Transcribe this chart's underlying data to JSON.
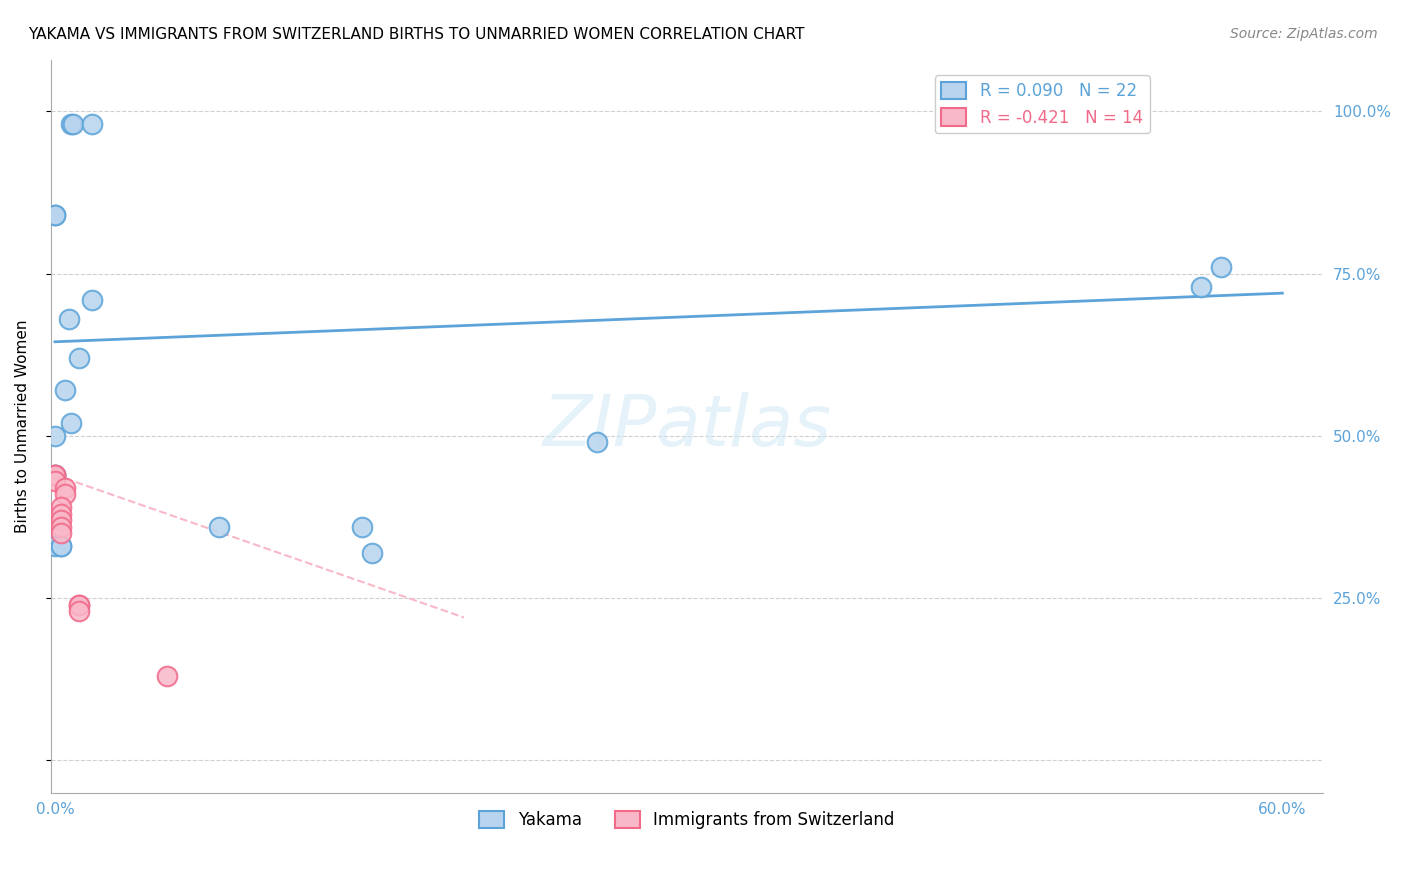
{
  "title": "YAKAMA VS IMMIGRANTS FROM SWITZERLAND BIRTHS TO UNMARRIED WOMEN CORRELATION CHART",
  "source": "Source: ZipAtlas.com",
  "ylabel": "Births to Unmarried Women",
  "xlim": [
    -0.002,
    0.62
  ],
  "ylim": [
    -0.05,
    1.08
  ],
  "x_ticks": [
    0.0,
    0.1,
    0.2,
    0.3,
    0.4,
    0.5,
    0.6
  ],
  "x_tick_labels": [
    "0.0%",
    "",
    "",
    "",
    "",
    "",
    "60.0%"
  ],
  "y_ticks": [
    0.0,
    0.25,
    0.5,
    0.75,
    1.0
  ],
  "y_tick_labels": [
    "",
    "25.0%",
    "50.0%",
    "75.0%",
    "100.0%"
  ],
  "legend_labels_top": [
    "R = 0.090   N = 22",
    "R = -0.421   N = 14"
  ],
  "legend_labels_bottom": [
    "Yakama",
    "Immigrants from Switzerland"
  ],
  "blue_scatter_x": [
    0.008,
    0.009,
    0.018,
    0.0,
    0.0,
    0.018,
    0.007,
    0.012,
    0.005,
    0.008,
    0.0,
    0.0,
    0.0,
    0.265,
    0.57,
    0.56,
    0.08,
    0.15,
    0.155,
    0.0,
    0.003,
    0.003
  ],
  "blue_scatter_y": [
    0.98,
    0.98,
    0.98,
    0.84,
    0.84,
    0.71,
    0.68,
    0.62,
    0.57,
    0.52,
    0.5,
    0.44,
    0.44,
    0.49,
    0.76,
    0.73,
    0.36,
    0.36,
    0.32,
    0.33,
    0.33,
    0.33
  ],
  "pink_scatter_x": [
    0.0,
    0.0,
    0.0,
    0.005,
    0.005,
    0.003,
    0.003,
    0.003,
    0.003,
    0.003,
    0.012,
    0.012,
    0.012,
    0.055
  ],
  "pink_scatter_y": [
    0.44,
    0.44,
    0.43,
    0.42,
    0.41,
    0.39,
    0.38,
    0.37,
    0.36,
    0.35,
    0.24,
    0.24,
    0.23,
    0.13
  ],
  "blue_line_x": [
    0.0,
    0.6
  ],
  "blue_line_y": [
    0.645,
    0.72
  ],
  "pink_line_x": [
    0.0,
    0.2
  ],
  "pink_line_y": [
    0.44,
    0.22
  ],
  "blue_color": "#5ba3d9",
  "pink_color": "#f06a8a",
  "blue_fill": "#b8d4ee",
  "pink_fill": "#f9b8c8",
  "watermark": "ZIPatlas",
  "grid_color": "#d0d0d0",
  "background_color": "#ffffff",
  "tick_color": "#5ba3d9"
}
